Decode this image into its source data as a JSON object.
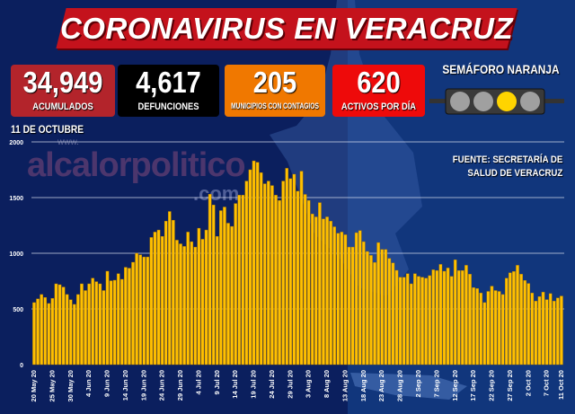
{
  "header": {
    "title": "CORONAVIRUS EN VERACRUZ",
    "date": "11 DE OCTUBRE",
    "source_line1": "FUENTE: SECRETARÍA DE",
    "source_line2": "SALUD DE VERACRUZ",
    "watermark": "alcalorpolitico",
    "watermark_www": "www.",
    "watermark_com": ".com"
  },
  "stats": [
    {
      "value": "34,949",
      "label": "ACUMULADOS",
      "color": "#b3242b"
    },
    {
      "value": "4,617",
      "label": "DEFUNCIONES",
      "color": "#000000"
    },
    {
      "value": "205",
      "label": "MUNICIPIOS CON CONTAGIOS",
      "color": "#f07800"
    },
    {
      "value": "620",
      "label": "ACTIVOS POR DÍA",
      "color": "#ee0a0a"
    }
  ],
  "semaforo": {
    "label": "SEMÁFORO NARANJA",
    "lights": [
      "off",
      "off",
      "on",
      "off"
    ],
    "active_color": "#ffd400"
  },
  "chart_data": {
    "type": "bar",
    "title": "",
    "xlabel": "",
    "ylabel": "",
    "ylim": [
      0,
      2000
    ],
    "yticks": [
      0,
      500,
      1000,
      1500,
      2000
    ],
    "grid": true,
    "bar_color": "#ffc000",
    "x_start": "20 May 20",
    "x_end": "11 Oct 20",
    "xtick_labels": [
      "20 May 20",
      "25 May 20",
      "30 May 20",
      "4 Jun 20",
      "9 Jun 20",
      "14 Jun 20",
      "19 Jun 20",
      "24 Jun 20",
      "29 Jun 20",
      "4 Jul 20",
      "9 Jul 20",
      "14 Jul 20",
      "19 Jul 20",
      "24 Jul 20",
      "29 Jul 20",
      "3 Aug 20",
      "8 Aug 20",
      "13 Aug 20",
      "18 Aug 20",
      "23 Aug 20",
      "28 Aug 20",
      "2 Sep 20",
      "7 Sep 20",
      "12 Sep 20",
      "17 Sep 20",
      "22 Sep 20",
      "27 Sep 20",
      "2 Oct 20",
      "7 Oct 20",
      "11 Oct 20"
    ],
    "values": [
      557,
      590,
      630,
      603,
      549,
      595,
      726,
      718,
      697,
      630,
      582,
      541,
      630,
      726,
      665,
      726,
      777,
      745,
      726,
      665,
      839,
      753,
      758,
      817,
      766,
      874,
      866,
      919,
      1000,
      986,
      967,
      967,
      1142,
      1190,
      1209,
      1152,
      1289,
      1375,
      1297,
      1118,
      1085,
      1061,
      1190,
      1104,
      1056,
      1225,
      1126,
      1209,
      1530,
      1434,
      1152,
      1383,
      1415,
      1270,
      1241,
      1447,
      1522,
      1522,
      1648,
      1750,
      1830,
      1817,
      1723,
      1624,
      1648,
      1608,
      1522,
      1474,
      1648,
      1763,
      1670,
      1710,
      1557,
      1737,
      1528,
      1474,
      1353,
      1327,
      1455,
      1308,
      1327,
      1289,
      1238,
      1179,
      1190,
      1166,
      1056,
      1056,
      1185,
      1203,
      1104,
      1016,
      981,
      917,
      1096,
      1034,
      1034,
      954,
      914,
      847,
      785,
      785,
      817,
      726,
      817,
      793,
      785,
      777,
      799,
      852,
      844,
      900,
      839,
      868,
      793,
      941,
      844,
      844,
      892,
      812,
      691,
      683,
      643,
      557,
      657,
      705,
      665,
      657,
      630,
      777,
      825,
      836,
      892,
      812,
      756,
      729,
      643,
      571,
      611,
      651,
      584,
      638,
      571,
      598,
      616
    ]
  }
}
